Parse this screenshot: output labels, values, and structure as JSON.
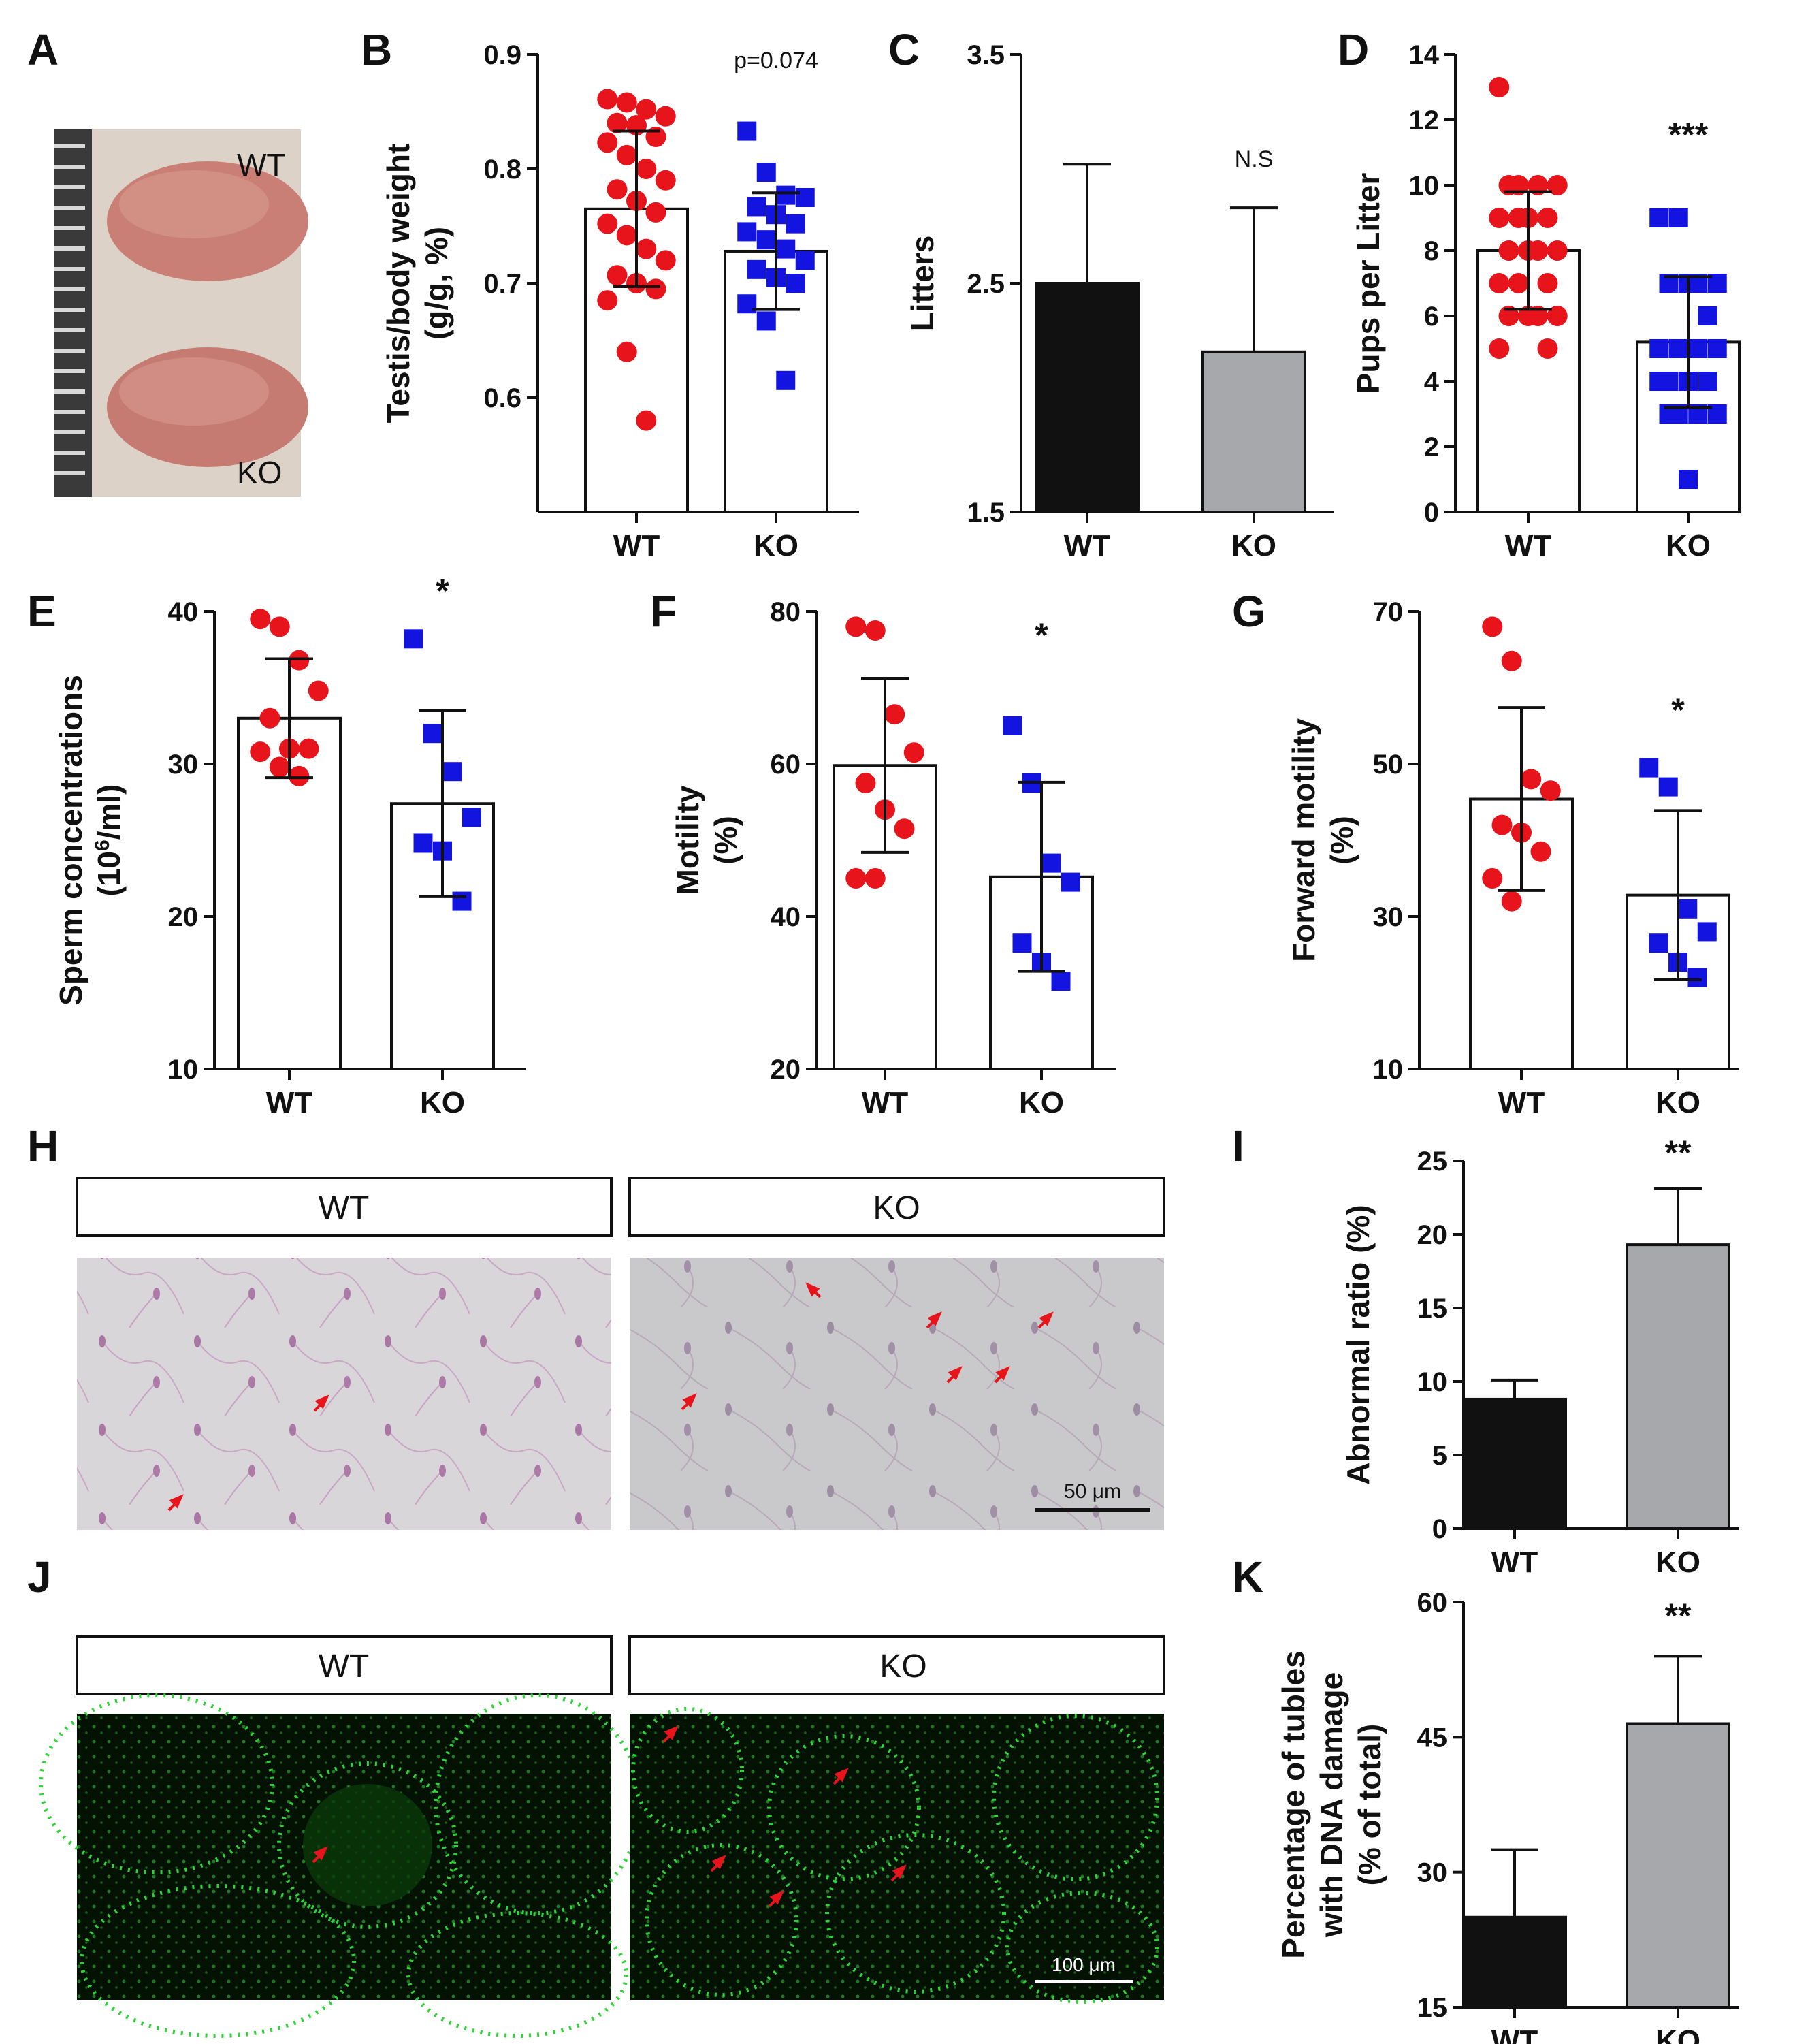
{
  "colors": {
    "wt_marker": "#e8141b",
    "ko_marker": "#1414e0",
    "wt_bar_fill": "#111111",
    "ko_bar_fill": "#a6a8ab",
    "fluorescence": "#25d82f"
  },
  "panels": {
    "A": {
      "letter": "A",
      "label_wt": "WT",
      "label_ko": "KO"
    },
    "H": {
      "letter": "H",
      "header_wt": "WT",
      "header_ko": "KO",
      "scalebar": "50 μm"
    },
    "J": {
      "letter": "J",
      "header_wt": "WT",
      "header_ko": "KO",
      "scalebar": "100 μm"
    }
  },
  "chart_data": [
    {
      "panel": "B",
      "type": "bar+scatter",
      "categories": [
        "WT",
        "KO"
      ],
      "ylabel_lines": [
        "Testis/body weight",
        "(g/g, %)"
      ],
      "ylim": [
        0.5,
        0.9
      ],
      "yticks": [
        "0.6",
        "0.7",
        "0.8",
        "0.9"
      ],
      "ytick_values": [
        0.6,
        0.7,
        0.8,
        0.9
      ],
      "means": [
        0.765,
        0.728
      ],
      "sd": [
        0.068,
        0.051
      ],
      "points": [
        [
          0.861,
          0.858,
          0.852,
          0.846,
          0.84,
          0.838,
          0.828,
          0.823,
          0.812,
          0.8,
          0.79,
          0.782,
          0.772,
          0.762,
          0.752,
          0.742,
          0.73,
          0.72,
          0.707,
          0.7,
          0.695,
          0.685,
          0.64,
          0.58
        ],
        [
          0.833,
          0.797,
          0.777,
          0.775,
          0.767,
          0.76,
          0.752,
          0.745,
          0.738,
          0.73,
          0.72,
          0.712,
          0.705,
          0.7,
          0.682,
          0.667,
          0.615
        ]
      ],
      "annotation": "p=0.074"
    },
    {
      "panel": "C",
      "type": "bar",
      "categories": [
        "WT",
        "KO"
      ],
      "ylabel_lines": [
        "Litters"
      ],
      "ylim": [
        1.5,
        3.5
      ],
      "yticks": [
        "1.5",
        "2.5",
        "3.5"
      ],
      "ytick_values": [
        1.5,
        2.5,
        3.5
      ],
      "means": [
        2.5,
        2.2
      ],
      "sd": [
        0.52,
        0.63
      ],
      "annotation": "N.S"
    },
    {
      "panel": "D",
      "type": "bar+scatter",
      "categories": [
        "WT",
        "KO"
      ],
      "ylabel_lines": [
        "Pups per Litter"
      ],
      "ylim": [
        0,
        14
      ],
      "yticks": [
        "0",
        "2",
        "4",
        "6",
        "8",
        "10",
        "12",
        "14"
      ],
      "ytick_values": [
        0,
        2,
        4,
        6,
        8,
        10,
        12,
        14
      ],
      "means": [
        8.0,
        5.2
      ],
      "sd": [
        1.8,
        2.0
      ],
      "points": [
        [
          13,
          10,
          10,
          10,
          10,
          9,
          9,
          9,
          9,
          8,
          8,
          8,
          8,
          7,
          7,
          7,
          6,
          6,
          6,
          6,
          5,
          5
        ],
        [
          9,
          9,
          7,
          7,
          7,
          7,
          6,
          5,
          5,
          5,
          5,
          4,
          4,
          4,
          4,
          3,
          3,
          3,
          3,
          1
        ]
      ],
      "annotation": "***"
    },
    {
      "panel": "E",
      "type": "bar+scatter",
      "categories": [
        "WT",
        "KO"
      ],
      "ylabel_lines": [
        "Sperm concentrations",
        "(10",
        "6",
        "/ml)"
      ],
      "ylim": [
        10,
        40
      ],
      "yticks": [
        "10",
        "20",
        "30",
        "40"
      ],
      "ytick_values": [
        10,
        20,
        30,
        40
      ],
      "means": [
        33.0,
        27.4
      ],
      "sd": [
        3.9,
        6.1
      ],
      "points": [
        [
          39.5,
          39.0,
          36.8,
          34.8,
          33.0,
          31.0,
          31.0,
          30.8,
          29.8,
          29.2
        ],
        [
          38.2,
          32.0,
          29.5,
          26.5,
          24.8,
          24.3,
          21.0
        ]
      ],
      "annotation": "*"
    },
    {
      "panel": "F",
      "type": "bar+scatter",
      "categories": [
        "WT",
        "KO"
      ],
      "ylabel_lines": [
        "Motility",
        "(%)"
      ],
      "ylim": [
        20,
        80
      ],
      "yticks": [
        "20",
        "40",
        "60",
        "80"
      ],
      "ytick_values": [
        20,
        40,
        60,
        80
      ],
      "means": [
        59.8,
        45.2
      ],
      "sd": [
        11.4,
        12.4
      ],
      "points": [
        [
          78.0,
          77.5,
          66.5,
          61.5,
          57.5,
          54.0,
          51.5,
          45.0,
          45.0
        ],
        [
          65.0,
          57.5,
          47.0,
          44.5,
          36.5,
          34.0,
          31.5
        ]
      ],
      "annotation": "*"
    },
    {
      "panel": "G",
      "type": "bar+scatter",
      "categories": [
        "WT",
        "KO"
      ],
      "ylabel_lines": [
        "Forward motility",
        "(%)"
      ],
      "ylim": [
        10,
        70
      ],
      "yticks": [
        "10",
        "30",
        "50",
        "70"
      ],
      "ytick_values": [
        10,
        30,
        50,
        70
      ],
      "means": [
        45.4,
        32.8
      ],
      "sd": [
        12.0,
        11.1
      ],
      "points": [
        [
          68.0,
          63.5,
          48.0,
          46.5,
          42.0,
          41.0,
          38.5,
          35.0,
          32.0
        ],
        [
          49.5,
          47.0,
          31.0,
          28.0,
          26.5,
          24.0,
          22.0
        ]
      ],
      "annotation": "*"
    },
    {
      "panel": "I",
      "type": "bar",
      "categories": [
        "WT",
        "KO"
      ],
      "ylabel_lines": [
        "Abnormal ratio (%)"
      ],
      "ylim": [
        0,
        25
      ],
      "yticks": [
        "0",
        "5",
        "10",
        "15",
        "20",
        "25"
      ],
      "ytick_values": [
        0,
        5,
        10,
        15,
        20,
        25
      ],
      "means": [
        8.8,
        19.3
      ],
      "sd": [
        1.3,
        3.8
      ],
      "annotation": "**"
    },
    {
      "panel": "K",
      "type": "bar",
      "categories": [
        "WT",
        "KO"
      ],
      "ylabel_lines": [
        "Percentage of tubles",
        "with DNA damage",
        "(% of total)"
      ],
      "ylim": [
        15,
        60
      ],
      "yticks": [
        "15",
        "30",
        "45",
        "60"
      ],
      "ytick_values": [
        15,
        30,
        45,
        60
      ],
      "means": [
        25.0,
        46.5
      ],
      "sd": [
        7.5,
        7.5
      ],
      "annotation": "**"
    }
  ]
}
